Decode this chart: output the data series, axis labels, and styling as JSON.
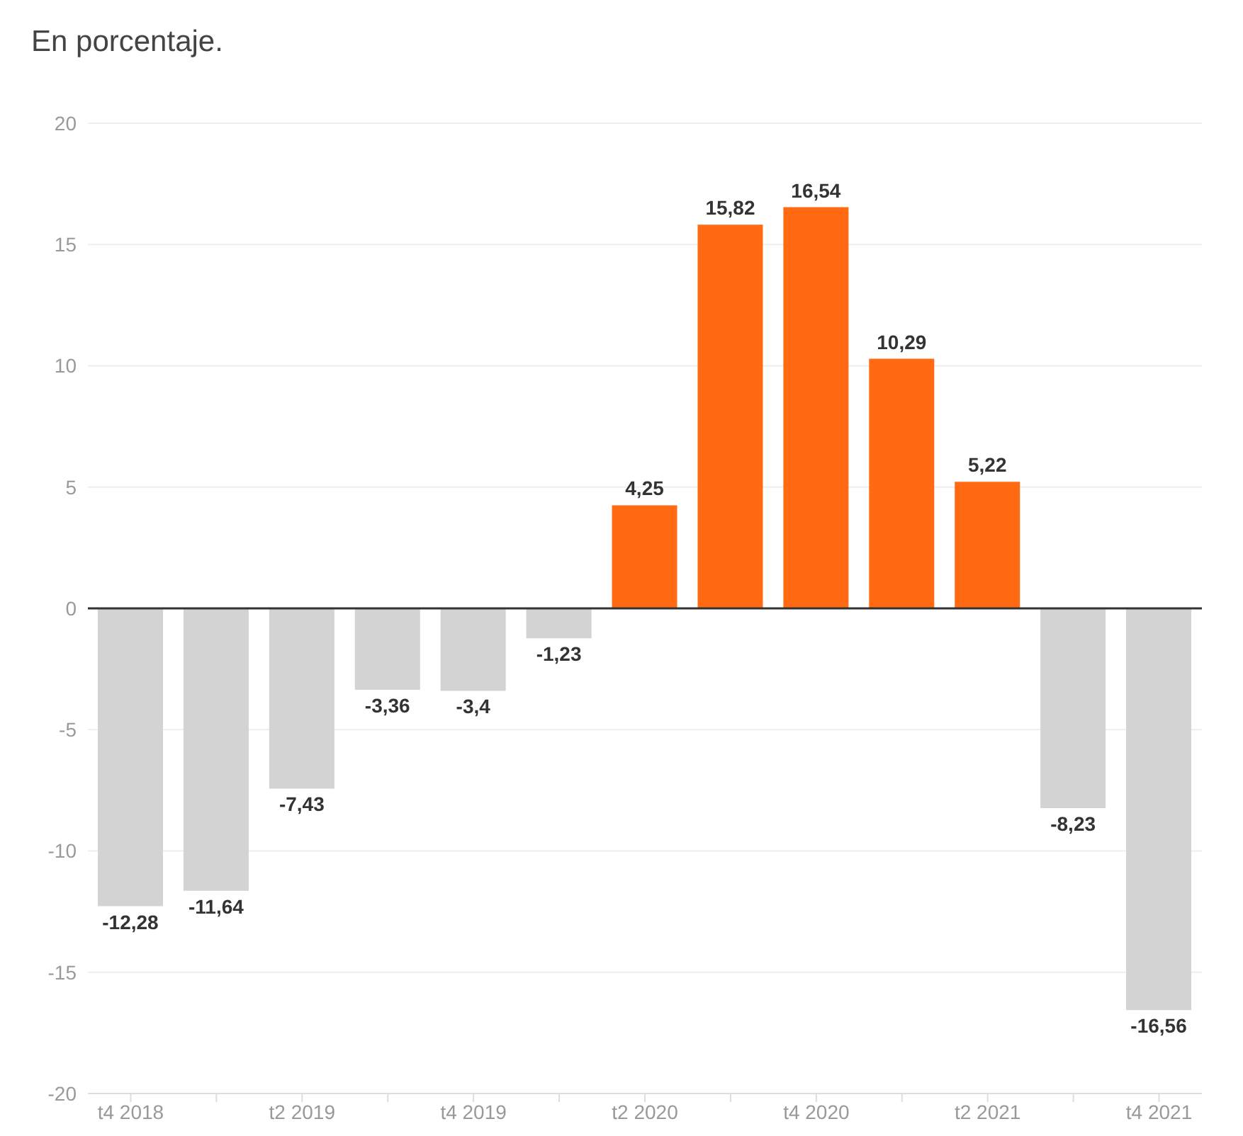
{
  "chart_data": {
    "type": "bar",
    "title": "En porcentaje.",
    "categories": [
      "t4 2018",
      null,
      "t2 2019",
      null,
      "t4 2019",
      null,
      "t2 2020",
      null,
      "t4 2020",
      null,
      "t2 2021",
      null,
      "t4 2021"
    ],
    "values": [
      -12.28,
      -11.64,
      -7.43,
      -3.36,
      -3.4,
      -1.23,
      4.25,
      15.82,
      16.54,
      10.29,
      5.22,
      -8.23,
      -16.56
    ],
    "colors": [
      "#d3d3d3",
      "#d3d3d3",
      "#d3d3d3",
      "#d3d3d3",
      "#d3d3d3",
      "#d3d3d3",
      "#ff6a13",
      "#ff6a13",
      "#ff6a13",
      "#ff6a13",
      "#ff6a13",
      "#d3d3d3",
      "#d3d3d3"
    ],
    "value_labels": [
      "-12,28",
      "-11,64",
      "-7,43",
      "-3,36",
      "-3,4",
      "-1,23",
      "4,25",
      "15,82",
      "16,54",
      "10,29",
      "5,22",
      "-8,23",
      "-16,56"
    ],
    "ylim": [
      -20,
      20
    ],
    "yticks": [
      -20,
      -15,
      -10,
      -5,
      0,
      5,
      10,
      15,
      20
    ],
    "grid": "y",
    "ref_lines": [
      {
        "axis": "y",
        "value": 0,
        "label": null,
        "color": "#333333"
      }
    ]
  }
}
